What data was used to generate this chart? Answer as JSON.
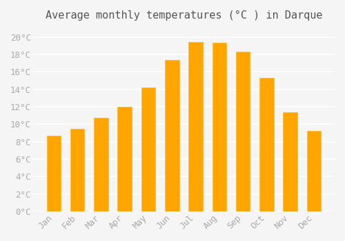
{
  "title": "Average monthly temperatures (°C ) in Darque",
  "months": [
    "Jan",
    "Feb",
    "Mar",
    "Apr",
    "May",
    "Jun",
    "Jul",
    "Aug",
    "Sep",
    "Oct",
    "Nov",
    "Dec"
  ],
  "temperatures": [
    8.7,
    9.5,
    10.7,
    12.0,
    14.2,
    17.4,
    19.4,
    19.3,
    18.3,
    15.3,
    11.4,
    9.2
  ],
  "bar_color_face": "#FFA500",
  "bar_color_edge": "#FFB833",
  "ylim": [
    0,
    21
  ],
  "yticks": [
    0,
    2,
    4,
    6,
    8,
    10,
    12,
    14,
    16,
    18,
    20
  ],
  "ytick_labels": [
    "0°C",
    "2°C",
    "4°C",
    "6°C",
    "8°C",
    "10°C",
    "12°C",
    "14°C",
    "16°C",
    "18°C",
    "20°C"
  ],
  "background_color": "#f5f5f5",
  "grid_color": "#ffffff",
  "title_fontsize": 11,
  "tick_fontsize": 9,
  "tick_color": "#aaaaaa",
  "title_font_family": "monospace"
}
